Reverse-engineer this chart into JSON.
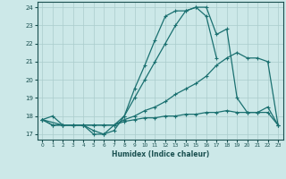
{
  "title": "",
  "xlabel": "Humidex (Indice chaleur)",
  "xlim": [
    -0.5,
    23.5
  ],
  "ylim": [
    16.7,
    24.3
  ],
  "xticks": [
    0,
    1,
    2,
    3,
    4,
    5,
    6,
    7,
    8,
    9,
    10,
    11,
    12,
    13,
    14,
    15,
    16,
    17,
    18,
    19,
    20,
    21,
    22,
    23
  ],
  "yticks": [
    17,
    18,
    19,
    20,
    21,
    22,
    23,
    24
  ],
  "background_color": "#cce8e8",
  "grid_color": "#aacccc",
  "line_color": "#1a7070",
  "lines": [
    {
      "x": [
        0,
        1,
        2,
        3,
        4,
        5,
        6,
        7,
        8,
        9,
        10,
        11,
        12,
        13,
        14,
        15,
        16,
        17
      ],
      "y": [
        17.8,
        18.0,
        17.5,
        17.5,
        17.5,
        17.0,
        17.0,
        17.2,
        18.0,
        19.5,
        20.8,
        22.2,
        23.5,
        23.8,
        23.8,
        24.0,
        23.5,
        21.2
      ]
    },
    {
      "x": [
        0,
        2,
        3,
        4,
        5,
        6,
        7,
        8,
        9,
        10,
        11,
        12,
        13,
        14,
        15,
        16,
        17,
        18,
        19,
        20,
        21,
        22,
        23
      ],
      "y": [
        17.8,
        17.5,
        17.5,
        17.5,
        17.5,
        17.5,
        17.5,
        17.8,
        18.0,
        18.3,
        18.5,
        18.8,
        19.2,
        19.5,
        19.8,
        20.2,
        20.8,
        21.2,
        21.5,
        21.2,
        21.2,
        21.0,
        17.5
      ]
    },
    {
      "x": [
        0,
        1,
        2,
        3,
        4,
        5,
        6,
        7,
        8,
        9,
        10,
        11,
        12,
        13,
        14,
        15,
        16,
        17,
        18,
        19,
        20,
        21,
        22,
        23
      ],
      "y": [
        17.8,
        17.5,
        17.5,
        17.5,
        17.5,
        17.5,
        17.5,
        17.5,
        17.7,
        17.8,
        17.9,
        17.9,
        18.0,
        18.0,
        18.1,
        18.1,
        18.2,
        18.2,
        18.3,
        18.2,
        18.2,
        18.2,
        18.2,
        17.5
      ]
    },
    {
      "x": [
        0,
        1,
        2,
        3,
        4,
        5,
        6,
        7,
        8,
        9,
        10,
        11,
        12,
        13,
        14,
        15,
        16,
        17,
        18,
        19,
        20,
        21,
        22,
        23
      ],
      "y": [
        17.8,
        17.5,
        17.5,
        17.5,
        17.5,
        17.2,
        17.0,
        17.5,
        18.0,
        19.0,
        20.0,
        21.0,
        22.0,
        23.0,
        23.8,
        24.0,
        24.0,
        22.5,
        22.8,
        19.0,
        18.2,
        18.2,
        18.5,
        17.5
      ]
    }
  ]
}
